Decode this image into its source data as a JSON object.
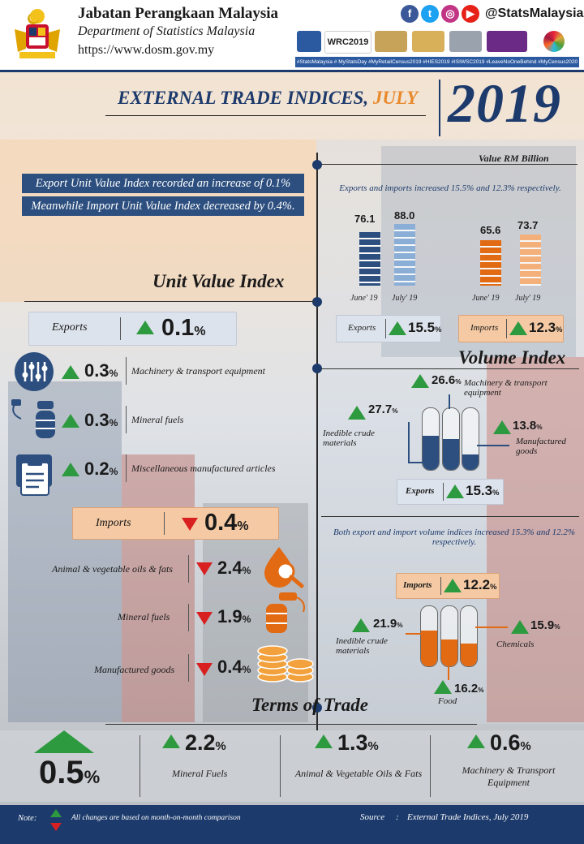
{
  "header": {
    "org_ms": "Jabatan Perangkaan Malaysia",
    "org_en": "Department of Statistics Malaysia",
    "url": "https://www.dosm.gov.my",
    "social_handle": "@StatsMalaysia",
    "social_icons": [
      "facebook-icon",
      "twitter-icon",
      "instagram-icon",
      "youtube-icon"
    ],
    "event_logo_text": "WRC2019",
    "hashtags": "#StatsMalaysia # MyStatsDay #MyRetailCensus2019 #HIES2019 #ISIWSC2019 #LeaveNoOneBehind #MyCensus2020"
  },
  "title": {
    "text": "EXTERNAL TRADE INDICES,",
    "month": "JULY",
    "year": "2019"
  },
  "value_rm": {
    "label": "Value RM Billion",
    "description": "Exports and imports increased 15.5% and 12.3% respectively.",
    "exports": {
      "bars": [
        {
          "value": "76.1",
          "label": "June' 19",
          "color": "#2d4f7f"
        },
        {
          "value": "88.0",
          "label": "July' 19",
          "color": "#8aaed6"
        }
      ],
      "tag": "Exports",
      "change": "15.5",
      "unit": "%"
    },
    "imports": {
      "bars": [
        {
          "value": "65.6",
          "label": "June' 19",
          "color": "#e26a12"
        },
        {
          "value": "73.7",
          "label": "July' 19",
          "color": "#f3b07a"
        }
      ],
      "tag": "Imports",
      "change": "12.3",
      "unit": "%"
    }
  },
  "highlight": {
    "line1": "Export Unit Value Index recorded an increase of 0.1%",
    "line2": "Meanwhile Import Unit Value Index decreased by 0.4%."
  },
  "unit_value": {
    "heading": "Unit Value Index",
    "exports": {
      "label": "Exports",
      "value": "0.1",
      "unit": "%",
      "items": [
        {
          "value": "0.3",
          "unit": "%",
          "label": "Machinery & transport equipment",
          "icon": "machinery-sliders-icon"
        },
        {
          "value": "0.3",
          "unit": "%",
          "label": "Mineral fuels",
          "icon": "fuel-barrel-icon"
        },
        {
          "value": "0.2",
          "unit": "%",
          "label": "Miscellaneous manufactured articles",
          "icon": "clipboard-icon"
        }
      ]
    },
    "imports": {
      "label": "Imports",
      "value": "0.4",
      "unit": "%",
      "items": [
        {
          "label": "Animal & vegetable oils & fats",
          "value": "2.4",
          "unit": "%",
          "icon": "oil-drop-icon"
        },
        {
          "label": "Mineral fuels",
          "value": "1.9",
          "unit": "%",
          "icon": "fuel-barrel-icon"
        },
        {
          "label": "Manufactured goods",
          "value": "0.4",
          "unit": "%",
          "icon": "coin-stack-icon"
        }
      ]
    }
  },
  "volume": {
    "heading": "Volume Index",
    "description": "Both export and import volume indices increased 15.3% and 12.2% respectively.",
    "exports": {
      "tag": "Exports",
      "value": "15.3",
      "unit": "%",
      "items": [
        {
          "value": "27.7",
          "unit": "%",
          "label": "Inedible crude materials",
          "fill": 0.55
        },
        {
          "value": "26.6",
          "unit": "%",
          "label": "Machinery & transport equipment",
          "fill": 0.5
        },
        {
          "value": "13.8",
          "unit": "%",
          "label": "Manufactured goods",
          "fill": 0.25
        }
      ]
    },
    "imports": {
      "tag": "Imports",
      "value": "12.2",
      "unit": "%",
      "items": [
        {
          "value": "21.9",
          "unit": "%",
          "label": "Inedible crude materials",
          "fill": 0.6
        },
        {
          "value": "16.2",
          "unit": "%",
          "label": "Food",
          "fill": 0.45
        },
        {
          "value": "15.9",
          "unit": "%",
          "label": "Chemicals",
          "fill": 0.38
        }
      ]
    }
  },
  "terms_of_trade": {
    "heading": "Terms of Trade",
    "value": "0.5",
    "unit": "%",
    "items": [
      {
        "value": "2.2",
        "unit": "%",
        "label": "Mineral Fuels"
      },
      {
        "value": "1.3",
        "unit": "%",
        "label": "Animal & Vegetable Oils & Fats"
      },
      {
        "value": "0.6",
        "unit": "%",
        "label": "Machinery & Transport Equipment"
      }
    ]
  },
  "footer": {
    "note_label": "Note:",
    "note": "All changes are based on month-on-month comparison",
    "source_label": "Source",
    "source_sep": ":",
    "source": "External Trade Indices, July 2019"
  },
  "colors": {
    "navy": "#1c3a6b",
    "accent_orange": "#e8892b",
    "up_green": "#2e9a3f",
    "down_red": "#d92020"
  }
}
